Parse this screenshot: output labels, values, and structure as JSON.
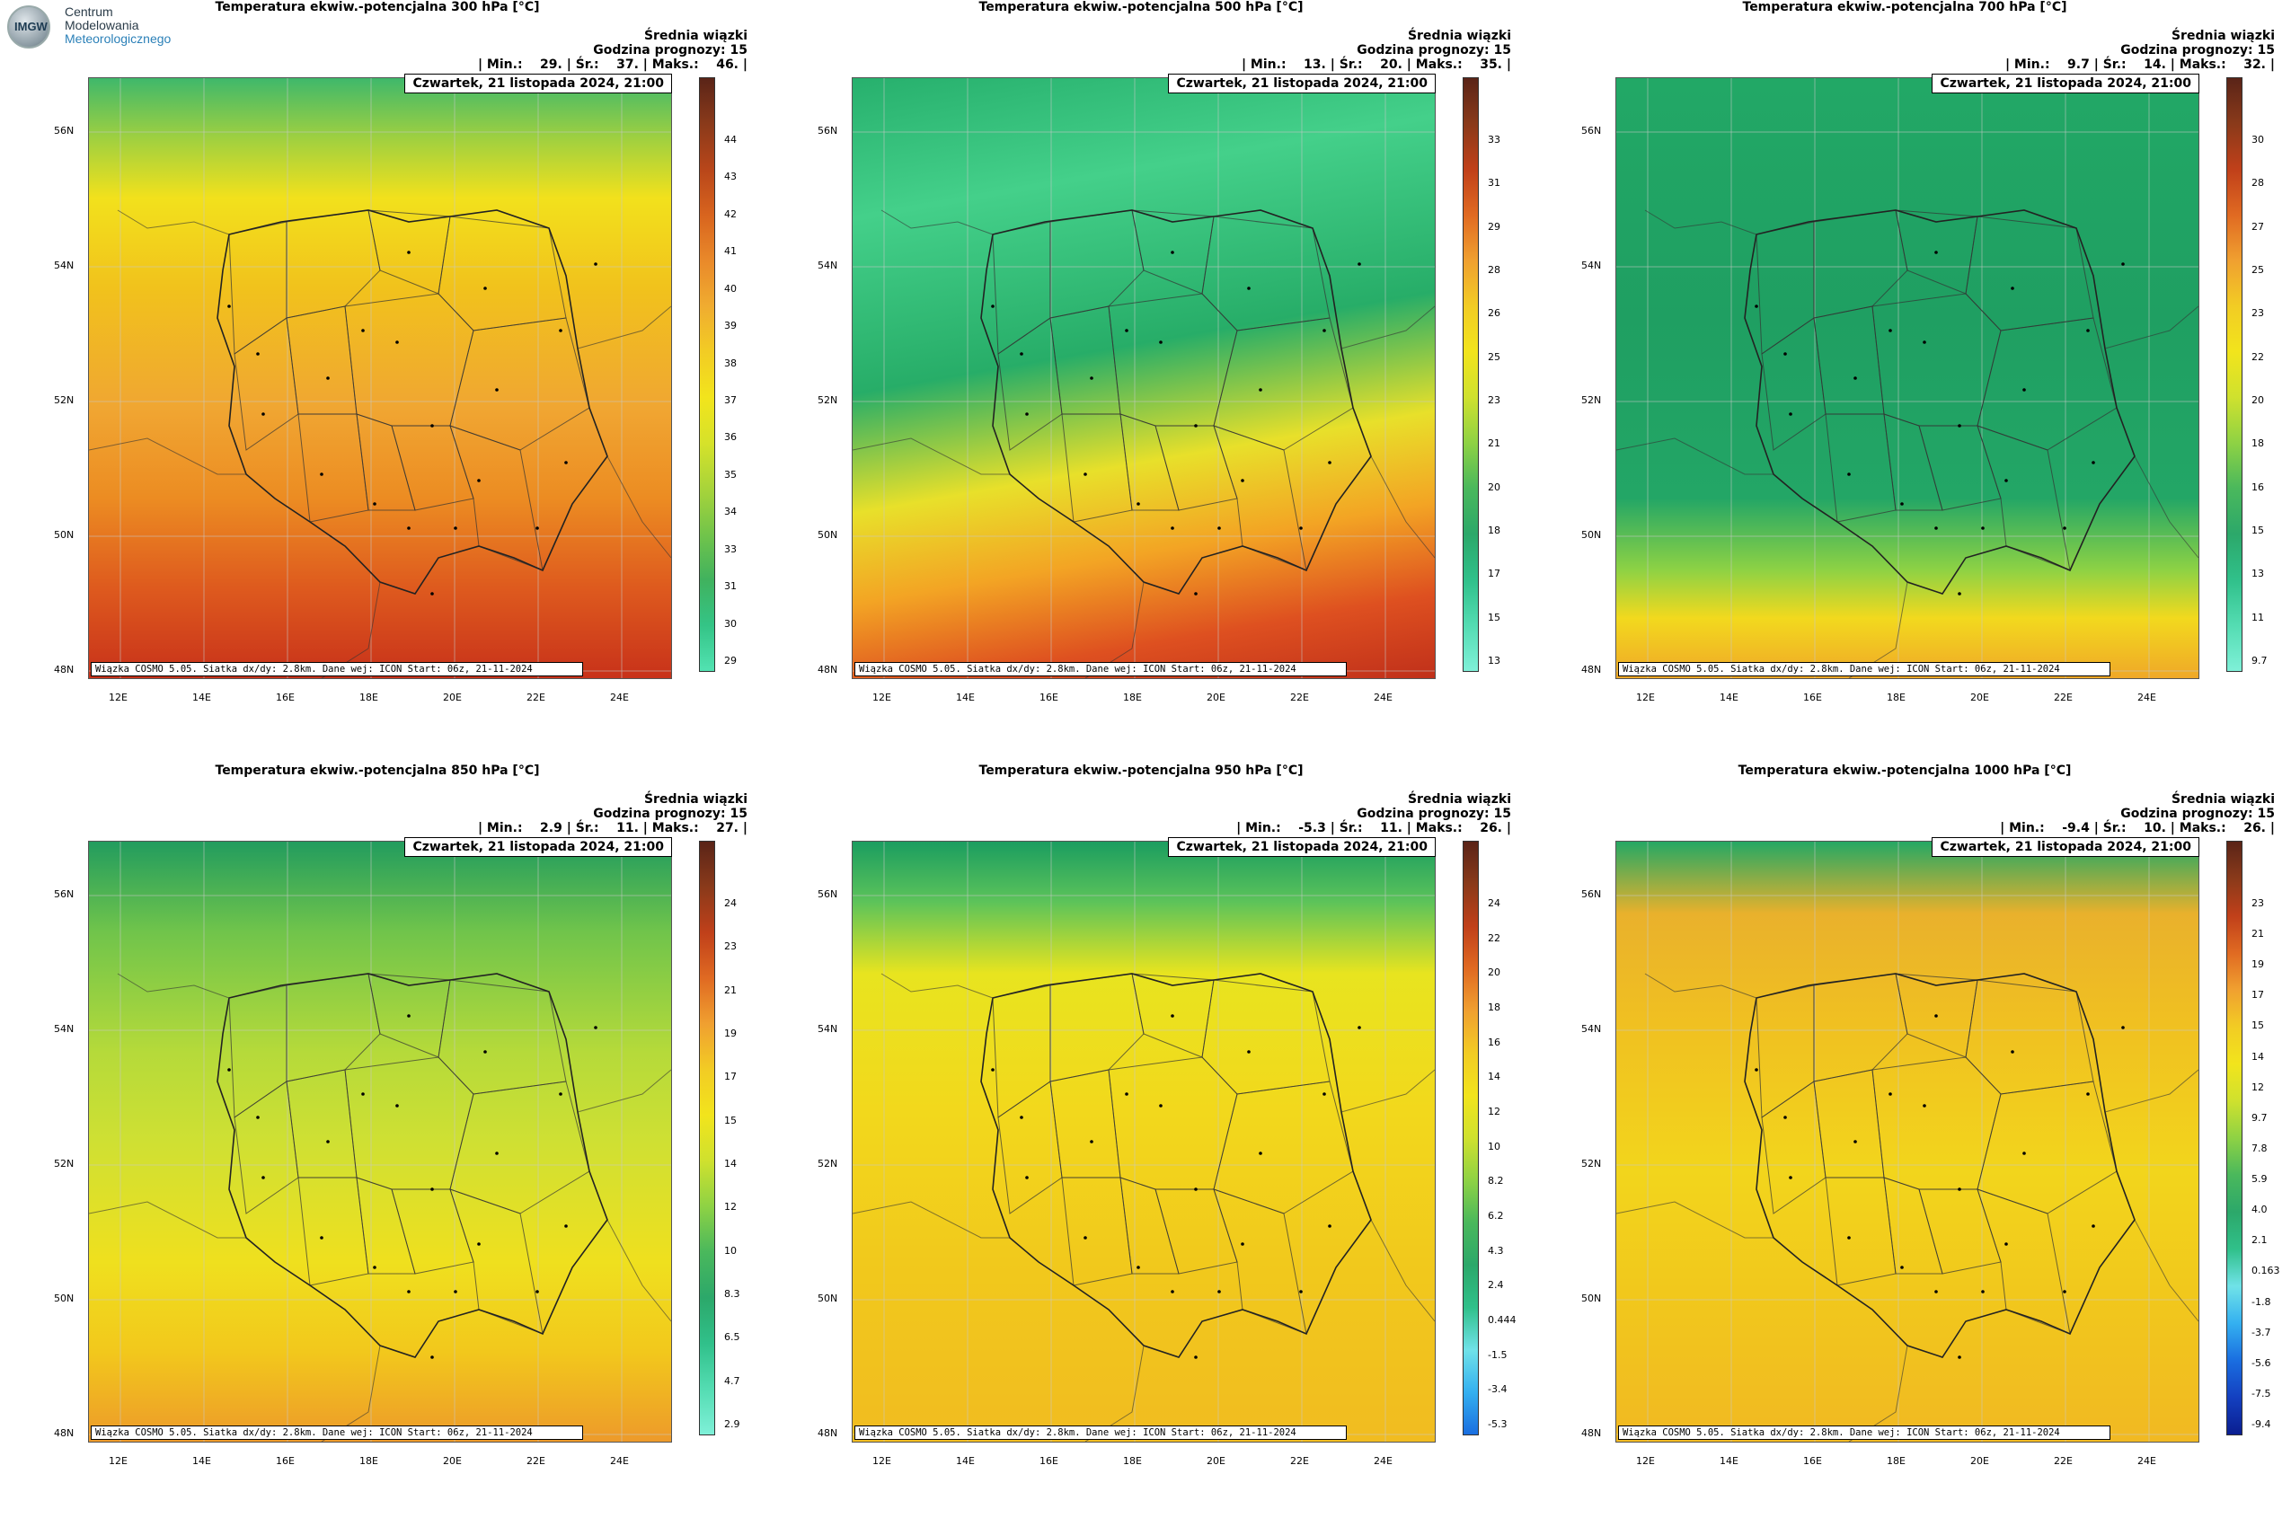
{
  "logo": {
    "letters": "IMGW",
    "line1": "Centrum",
    "line2": "Modelowania",
    "line3": "Meteorologicznego"
  },
  "common": {
    "stat_header": "Średnia wiązki",
    "forecast_hour": "Godzina prognozy: 15",
    "date": "Czwartek, 21 listopada 2024, 21:00",
    "footer": "Wiązka COSMO 5.05. Siatka dx/dy: 2.8km. Dane wej: ICON Start: 06z, 21-11-2024",
    "lat_labels": [
      "56N",
      "54N",
      "52N",
      "50N",
      "48N"
    ],
    "lon_labels": [
      "12E",
      "14E",
      "16E",
      "18E",
      "20E",
      "22E",
      "24E"
    ]
  },
  "panels": [
    {
      "title": "Temperatura ekwiw.-potencjalna 300 hPa [°C]",
      "stats": "| Min.:    29. | Śr.:    37. | Maks.:    46. |",
      "scale": [
        "44",
        "43",
        "42",
        "41",
        "40",
        "39",
        "38",
        "37",
        "36",
        "35",
        "34",
        "33",
        "31",
        "30",
        "29"
      ],
      "palette": "warm",
      "colors": {
        "top": "#f1c21c",
        "mid": "#f0a030",
        "bottom": "#d43c1a"
      }
    },
    {
      "title": "Temperatura ekwiw.-potencjalna 500 hPa [°C]",
      "stats": "| Min.:    13. | Śr.:    20. | Maks.:    35. |",
      "scale": [
        "33",
        "31",
        "29",
        "28",
        "26",
        "25",
        "23",
        "21",
        "20",
        "18",
        "17",
        "15",
        "13"
      ],
      "palette": "greenred",
      "colors": {
        "top": "#2fc07a",
        "mid": "#1fa66a",
        "bottom": "#d0401e"
      }
    },
    {
      "title": "Temperatura ekwiw.-potencjalna 700 hPa [°C]",
      "stats": "| Min.:    9.7 | Śr.:    14. | Maks.:    32. |",
      "scale": [
        "30",
        "28",
        "27",
        "25",
        "23",
        "22",
        "20",
        "18",
        "16",
        "15",
        "13",
        "11",
        "9.7"
      ],
      "palette": "green",
      "colors": {
        "top": "#2bb36d",
        "mid": "#20a466",
        "bottom": "#f1d31e"
      }
    },
    {
      "title": "Temperatura ekwiw.-potencjalna 850 hPa [°C]",
      "stats": "| Min.:    2.9 | Śr.:    11. | Maks.:    27. |",
      "scale": [
        "24",
        "23",
        "21",
        "19",
        "17",
        "15",
        "14",
        "12",
        "10",
        "8.3",
        "6.5",
        "4.7",
        "2.9"
      ],
      "palette": "yellowgreen",
      "colors": {
        "top": "#36b26a",
        "mid": "#a5d43a",
        "bottom": "#f0c21b"
      }
    },
    {
      "title": "Temperatura ekwiw.-potencjalna 950 hPa [°C]",
      "stats": "| Min.:    -5.3 | Śr.:    11. | Maks.:    26. |",
      "scale": [
        "24",
        "22",
        "20",
        "18",
        "16",
        "14",
        "12",
        "10",
        "8.2",
        "6.2",
        "4.3",
        "2.4",
        "0.444",
        "-1.5",
        "-3.4",
        "-5.3"
      ],
      "palette": "yellow",
      "colors": {
        "top": "#2fb06a",
        "mid": "#f1d21d",
        "bottom": "#f0b822"
      }
    },
    {
      "title": "Temperatura ekwiw.-potencjalna 1000 hPa [°C]",
      "stats": "| Min.:    -9.4 | Śr.:    10. | Maks.:    26. |",
      "scale": [
        "23",
        "21",
        "19",
        "17",
        "15",
        "14",
        "12",
        "9.7",
        "7.8",
        "5.9",
        "4.0",
        "2.1",
        "0.163",
        "-1.8",
        "-3.7",
        "-5.6",
        "-7.5",
        "-9.4"
      ],
      "palette": "yellowfull",
      "colors": {
        "top": "#f0b024",
        "mid": "#f1d21d",
        "bottom": "#f1c41c"
      }
    }
  ]
}
